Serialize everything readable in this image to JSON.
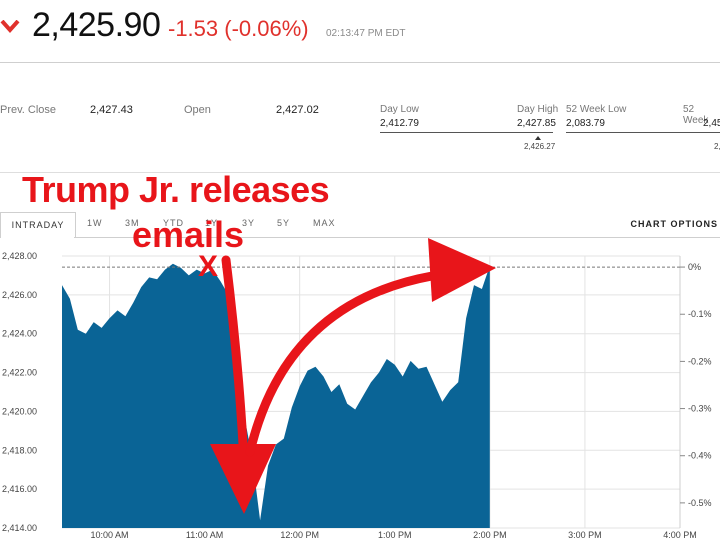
{
  "quote": {
    "price": "2,425.90",
    "change": "-1.53 (-0.06%)",
    "timestamp": "02:13:47 PM EDT",
    "down_color": "#e0312c"
  },
  "stats": {
    "prev_close_label": "Prev. Close",
    "prev_close_value": "2,427.43",
    "open_label": "Open",
    "open_value": "2,427.02",
    "day_low_label": "Day Low",
    "day_low_value": "2,412.79",
    "day_high_label": "Day High",
    "day_high_value": "2,427.85",
    "day_current": "2,426.27",
    "week52_low_label": "52 Week Low",
    "week52_low_value": "2,083.79",
    "week52_high_label": "52 Week",
    "week52_high_value": "2,45",
    "week52_current": "2,"
  },
  "tabs": [
    "INTRADAY",
    "1W",
    "3M",
    "YTD",
    "1Y",
    "3Y",
    "5Y",
    "MAX"
  ],
  "active_tab": "INTRADAY",
  "chart_options_label": "CHART OPTIONS",
  "annotation": {
    "line1": "Trump Jr. releases",
    "line2": "emails",
    "marker": "X",
    "color": "#e8151a"
  },
  "chart_data": {
    "type": "area",
    "title": "",
    "xlabel": "",
    "ylabel": "",
    "fill_color": "#0a6496",
    "ylim": [
      2414,
      2428
    ],
    "y_ticks": [
      "2,428.00",
      "2,426.00",
      "2,424.00",
      "2,422.00",
      "2,420.00",
      "2,418.00",
      "2,416.00",
      "2,414.00"
    ],
    "y_tick_values": [
      2428,
      2426,
      2424,
      2422,
      2420,
      2418,
      2416,
      2414
    ],
    "pct_ticks": [
      "0%",
      "-0.1%",
      "-0.2%",
      "-0.3%",
      "-0.4%",
      "-0.5%"
    ],
    "pct_tick_values": [
      0,
      -0.1,
      -0.2,
      -0.3,
      -0.4,
      -0.5
    ],
    "prev_close": 2427.43,
    "x_range": [
      "09:30",
      "16:00"
    ],
    "x_ticks": [
      "10:00 AM",
      "11:00 AM",
      "12:00 PM",
      "1:00 PM",
      "2:00 PM",
      "3:00 PM",
      "4:00 PM"
    ],
    "x_tick_times": [
      "10:00",
      "11:00",
      "12:00",
      "13:00",
      "14:00",
      "15:00",
      "16:00"
    ],
    "series": [
      {
        "x": [
          "09:30",
          "09:35",
          "09:40",
          "09:45",
          "09:50",
          "09:55",
          "10:00",
          "10:05",
          "10:10",
          "10:15",
          "10:20",
          "10:25",
          "10:30",
          "10:35",
          "10:40",
          "10:45",
          "10:50",
          "10:55",
          "11:00",
          "11:05",
          "11:10",
          "11:15",
          "11:20",
          "11:25",
          "11:30",
          "11:35",
          "11:40",
          "11:45",
          "11:50",
          "11:55",
          "12:00",
          "12:05",
          "12:10",
          "12:15",
          "12:20",
          "12:25",
          "12:30",
          "12:35",
          "12:40",
          "12:45",
          "12:50",
          "12:55",
          "13:00",
          "13:05",
          "13:10",
          "13:15",
          "13:20",
          "13:25",
          "13:30",
          "13:35",
          "13:40",
          "13:45",
          "13:50",
          "13:55",
          "14:00"
        ],
        "values": [
          2426.5,
          2425.8,
          2424.2,
          2424.0,
          2424.6,
          2424.3,
          2424.8,
          2425.2,
          2424.9,
          2425.6,
          2426.4,
          2426.9,
          2426.8,
          2427.3,
          2427.6,
          2427.4,
          2427.0,
          2427.3,
          2427.1,
          2427.3,
          2426.7,
          2426.0,
          2423.8,
          2419.8,
          2417.6,
          2414.4,
          2417.2,
          2418.3,
          2418.6,
          2420.2,
          2421.3,
          2422.1,
          2422.3,
          2421.8,
          2421.0,
          2421.4,
          2420.4,
          2420.1,
          2420.8,
          2421.5,
          2422.0,
          2422.7,
          2422.4,
          2421.8,
          2422.6,
          2422.2,
          2422.3,
          2421.4,
          2420.5,
          2421.1,
          2421.5,
          2424.8,
          2426.5,
          2426.3,
          2427.5
        ]
      }
    ]
  }
}
